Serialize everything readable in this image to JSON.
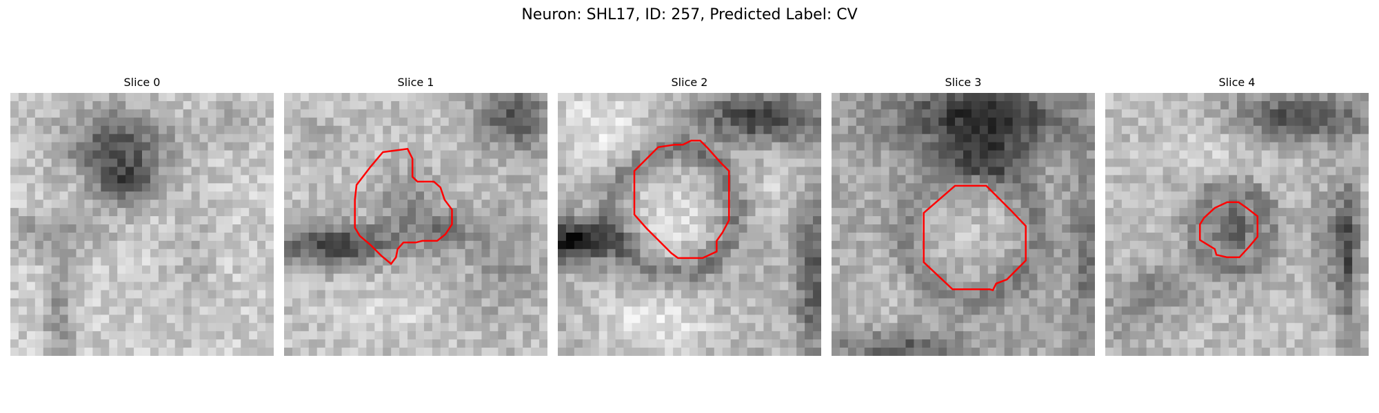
{
  "figure": {
    "title": "Neuron: SHL17, ID: 257, Predicted Label: CV"
  },
  "slices": [
    {
      "title": "Slice 0"
    },
    {
      "title": "Slice 1"
    },
    {
      "title": "Slice 2"
    },
    {
      "title": "Slice 3"
    },
    {
      "title": "Slice 4"
    }
  ],
  "colors": {
    "outline": "#ff0000",
    "background": "#ffffff"
  }
}
